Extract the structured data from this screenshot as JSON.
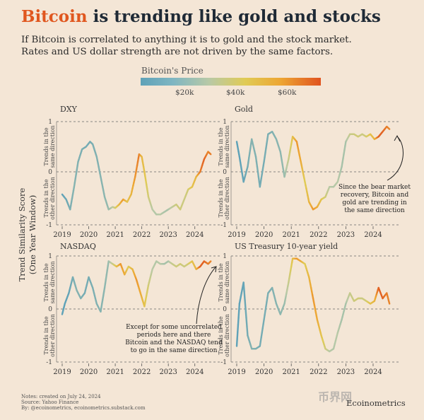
{
  "title": {
    "accent": "Bitcoin",
    "rest": " is trending like gold and stocks"
  },
  "subtitle": {
    "line1": "If Bitcoin is correlated to anything it is to gold and the stock market.",
    "line2": "Rates and US dollar strength are not driven by the same factors."
  },
  "legend": {
    "title": "Bitcoin's Price",
    "ticks": [
      "$20k",
      "$40k",
      "$60k"
    ],
    "colors": [
      "#5fa2b8",
      "#b8c9a6",
      "#e0cb55",
      "#eda533",
      "#e0531f"
    ]
  },
  "y_axis_title": {
    "line1": "Trend Similarity Score",
    "line2": "(One Year Window)"
  },
  "panel_axis": {
    "upper": "Trends in the same direction",
    "lower": "Trends in the other direction",
    "ticks": [
      "1",
      "0",
      "-1"
    ]
  },
  "chart_data": [
    {
      "type": "line",
      "title": "DXY",
      "x_ticks": [
        "2019",
        "2020",
        "2021",
        "2022",
        "2023",
        "2024"
      ],
      "xlim": [
        2019,
        2024.7
      ],
      "ylim": [
        -1,
        1
      ],
      "x": [
        2019,
        2019.15,
        2019.3,
        2019.45,
        2019.6,
        2019.75,
        2019.9,
        2020.05,
        2020.15,
        2020.3,
        2020.45,
        2020.6,
        2020.75,
        2020.9,
        2021.0,
        2021.15,
        2021.3,
        2021.45,
        2021.6,
        2021.75,
        2021.9,
        2022.0,
        2022.1,
        2022.25,
        2022.4,
        2022.55,
        2022.7,
        2022.85,
        2023.0,
        2023.15,
        2023.3,
        2023.45,
        2023.6,
        2023.75,
        2023.9,
        2024.05,
        2024.2,
        2024.35,
        2024.5,
        2024.6
      ],
      "values": [
        -0.45,
        -0.55,
        -0.75,
        -0.3,
        0.2,
        0.45,
        0.5,
        0.6,
        0.55,
        0.3,
        -0.1,
        -0.5,
        -0.75,
        -0.7,
        -0.72,
        -0.65,
        -0.55,
        -0.6,
        -0.45,
        -0.1,
        0.35,
        0.3,
        0.0,
        -0.5,
        -0.75,
        -0.85,
        -0.85,
        -0.8,
        -0.75,
        -0.7,
        -0.65,
        -0.75,
        -0.55,
        -0.35,
        -0.3,
        -0.1,
        0.0,
        0.25,
        0.4,
        0.35
      ],
      "btc_price_k": [
        4,
        6,
        9,
        11,
        10,
        9,
        8,
        8,
        9,
        10,
        11,
        12,
        14,
        20,
        30,
        45,
        55,
        40,
        45,
        55,
        60,
        45,
        40,
        30,
        20,
        19,
        20,
        18,
        17,
        22,
        28,
        29,
        27,
        30,
        40,
        45,
        60,
        65,
        58,
        60
      ]
    },
    {
      "type": "line",
      "title": "Gold",
      "x_ticks": [
        "2019",
        "2020",
        "2021",
        "2022",
        "2023",
        "2024"
      ],
      "xlim": [
        2019,
        2024.7
      ],
      "ylim": [
        -1,
        1
      ],
      "x": [
        2019,
        2019.1,
        2019.25,
        2019.4,
        2019.55,
        2019.7,
        2019.85,
        2020.0,
        2020.15,
        2020.3,
        2020.45,
        2020.6,
        2020.75,
        2020.9,
        2021.05,
        2021.2,
        2021.35,
        2021.5,
        2021.65,
        2021.8,
        2021.95,
        2022.1,
        2022.25,
        2022.4,
        2022.55,
        2022.7,
        2022.85,
        2023.0,
        2023.15,
        2023.3,
        2023.45,
        2023.6,
        2023.75,
        2023.9,
        2024.05,
        2024.2,
        2024.35,
        2024.5,
        2024.6
      ],
      "values": [
        0.6,
        0.3,
        -0.2,
        0.1,
        0.65,
        0.3,
        -0.3,
        0.2,
        0.75,
        0.8,
        0.65,
        0.4,
        -0.1,
        0.25,
        0.7,
        0.6,
        0.2,
        -0.2,
        -0.6,
        -0.75,
        -0.7,
        -0.55,
        -0.5,
        -0.3,
        -0.3,
        -0.2,
        0.1,
        0.6,
        0.75,
        0.75,
        0.7,
        0.75,
        0.7,
        0.75,
        0.65,
        0.7,
        0.8,
        0.9,
        0.85
      ],
      "btc_price_k": [
        4,
        4,
        5,
        8,
        11,
        10,
        8,
        8,
        9,
        10,
        11,
        12,
        14,
        25,
        40,
        55,
        50,
        35,
        45,
        55,
        50,
        40,
        30,
        20,
        19,
        20,
        17,
        17,
        25,
        28,
        30,
        27,
        30,
        40,
        45,
        65,
        65,
        60,
        58
      ]
    },
    {
      "type": "line",
      "title": "NASDAQ",
      "x_ticks": [
        "2019",
        "2020",
        "2021",
        "2022",
        "2023",
        "2024"
      ],
      "xlim": [
        2019,
        2024.7
      ],
      "ylim": [
        -1,
        1
      ],
      "x": [
        2019,
        2019.1,
        2019.25,
        2019.4,
        2019.55,
        2019.7,
        2019.85,
        2020.0,
        2020.15,
        2020.3,
        2020.45,
        2020.6,
        2020.75,
        2020.9,
        2021.05,
        2021.2,
        2021.35,
        2021.5,
        2021.65,
        2021.8,
        2021.95,
        2022.1,
        2022.25,
        2022.4,
        2022.55,
        2022.7,
        2022.85,
        2023.0,
        2023.15,
        2023.3,
        2023.45,
        2023.6,
        2023.75,
        2023.9,
        2024.05,
        2024.2,
        2024.35,
        2024.5,
        2024.6
      ],
      "values": [
        -0.1,
        0.1,
        0.3,
        0.6,
        0.35,
        0.2,
        0.3,
        0.6,
        0.4,
        0.1,
        -0.05,
        0.4,
        0.9,
        0.85,
        0.8,
        0.85,
        0.65,
        0.8,
        0.75,
        0.55,
        0.3,
        0.05,
        0.45,
        0.75,
        0.9,
        0.85,
        0.85,
        0.9,
        0.85,
        0.8,
        0.85,
        0.8,
        0.85,
        0.9,
        0.75,
        0.8,
        0.9,
        0.85,
        0.9
      ],
      "btc_price_k": [
        4,
        4,
        5,
        8,
        11,
        10,
        8,
        8,
        9,
        10,
        11,
        12,
        14,
        25,
        40,
        55,
        50,
        35,
        45,
        55,
        50,
        40,
        30,
        20,
        19,
        20,
        17,
        17,
        25,
        28,
        30,
        27,
        30,
        40,
        45,
        65,
        65,
        60,
        58
      ]
    },
    {
      "type": "line",
      "title": "US Treasury 10-year yield",
      "x_ticks": [
        "2019",
        "2020",
        "2021",
        "2022",
        "2023",
        "2024"
      ],
      "xlim": [
        2019,
        2024.7
      ],
      "ylim": [
        -1,
        1
      ],
      "x": [
        2019,
        2019.1,
        2019.25,
        2019.4,
        2019.55,
        2019.7,
        2019.85,
        2020.0,
        2020.15,
        2020.3,
        2020.45,
        2020.6,
        2020.75,
        2020.9,
        2021.05,
        2021.2,
        2021.35,
        2021.5,
        2021.65,
        2021.8,
        2021.95,
        2022.1,
        2022.25,
        2022.4,
        2022.55,
        2022.7,
        2022.85,
        2023.0,
        2023.15,
        2023.3,
        2023.45,
        2023.6,
        2023.75,
        2023.9,
        2024.05,
        2024.2,
        2024.35,
        2024.5,
        2024.6
      ],
      "values": [
        -0.7,
        0.1,
        0.5,
        -0.5,
        -0.75,
        -0.75,
        -0.7,
        -0.2,
        0.3,
        0.4,
        0.1,
        -0.1,
        0.1,
        0.5,
        0.95,
        0.95,
        0.9,
        0.85,
        0.6,
        0.2,
        -0.2,
        -0.5,
        -0.75,
        -0.8,
        -0.75,
        -0.45,
        -0.2,
        0.1,
        0.3,
        0.15,
        0.2,
        0.2,
        0.15,
        0.1,
        0.15,
        0.4,
        0.2,
        0.3,
        0.1
      ],
      "btc_price_k": [
        4,
        4,
        5,
        8,
        11,
        10,
        8,
        8,
        9,
        10,
        11,
        12,
        14,
        25,
        40,
        55,
        50,
        35,
        45,
        55,
        50,
        40,
        30,
        20,
        19,
        20,
        17,
        17,
        25,
        28,
        30,
        27,
        30,
        40,
        45,
        65,
        65,
        60,
        58
      ]
    }
  ],
  "annotations": [
    {
      "panel": 1,
      "lines": [
        "Since the bear market",
        "recovery, Bitcoin and",
        "gold are trending in",
        "the same direction"
      ]
    },
    {
      "panel": 2,
      "lines": [
        "Except for some uncorrelated",
        "periods here and there",
        "Bitcoin and the NASDAQ tend",
        "to go in the same direction"
      ]
    }
  ],
  "notes": [
    "Notes: created on July 24, 2024",
    "Source: Yahoo Finance",
    "By: @ecoinometrics, ecoinometrics.substack.com"
  ],
  "brand": "Ecoinometrics",
  "watermark": "币界网"
}
